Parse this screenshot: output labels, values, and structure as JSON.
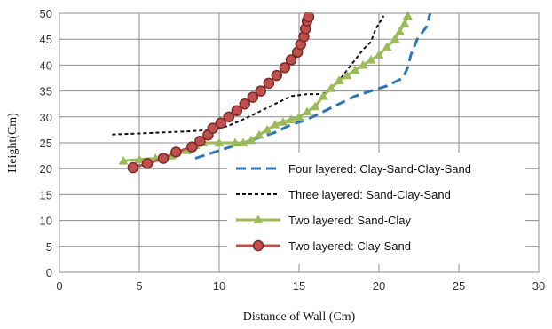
{
  "chart_data": {
    "type": "line",
    "title": "",
    "xlabel": "Distance of Wall (Cm)",
    "ylabel": "Height(Cm)",
    "xlim": [
      0,
      30
    ],
    "ylim": [
      0,
      50
    ],
    "xticks": [
      "0",
      "5",
      "10",
      "15",
      "20",
      "25",
      "30"
    ],
    "yticks": [
      "0",
      "5",
      "10",
      "15",
      "20",
      "25",
      "30",
      "35",
      "40",
      "45",
      "50"
    ],
    "grid": true,
    "legend_position": "bottom-right",
    "series": [
      {
        "name": "Four layered: Clay-Sand-Clay-Sand",
        "color": "#2e75b6",
        "style": "dashed",
        "marker": "none",
        "points": [
          [
            8.5,
            22
          ],
          [
            9.5,
            23
          ],
          [
            10.5,
            24
          ],
          [
            11.5,
            25
          ],
          [
            12.5,
            26
          ],
          [
            13.5,
            27
          ],
          [
            14.5,
            28.5
          ],
          [
            15.5,
            29.5
          ],
          [
            16.5,
            31
          ],
          [
            17.5,
            32.5
          ],
          [
            18.5,
            34
          ],
          [
            19.5,
            35
          ],
          [
            20.5,
            36
          ],
          [
            21.5,
            37.5
          ],
          [
            21.8,
            39.5
          ],
          [
            22,
            42
          ],
          [
            22.4,
            45
          ],
          [
            23,
            47.5
          ],
          [
            23.2,
            50
          ]
        ]
      },
      {
        "name": "Three layered: Sand-Clay-Sand",
        "color": "#111111",
        "style": "dotted",
        "marker": "none",
        "points": [
          [
            3.3,
            26.6
          ],
          [
            5,
            26.8
          ],
          [
            6.5,
            27
          ],
          [
            8,
            27.2
          ],
          [
            9.5,
            27.5
          ],
          [
            10.5,
            28.2
          ],
          [
            11.5,
            29.5
          ],
          [
            12.5,
            31
          ],
          [
            13.5,
            32.5
          ],
          [
            14.5,
            34
          ],
          [
            15.5,
            34.4
          ],
          [
            16.5,
            34.4
          ],
          [
            17.5,
            37
          ],
          [
            18.5,
            41
          ],
          [
            19,
            43
          ],
          [
            19.5,
            44.5
          ],
          [
            19.8,
            47
          ],
          [
            20.3,
            49.5
          ]
        ]
      },
      {
        "name": "Two layered: Sand-Clay",
        "color": "#9bbb59",
        "style": "solid",
        "marker": "triangle",
        "points": [
          [
            4,
            21.5
          ],
          [
            5,
            21.8
          ],
          [
            6,
            22
          ],
          [
            7,
            22.5
          ],
          [
            8,
            23.5
          ],
          [
            8.5,
            24.5
          ],
          [
            9,
            25
          ],
          [
            10,
            25
          ],
          [
            11,
            25
          ],
          [
            11.5,
            25
          ],
          [
            12,
            25.5
          ],
          [
            12.5,
            26.5
          ],
          [
            13,
            27.5
          ],
          [
            13.5,
            28.5
          ],
          [
            14,
            29
          ],
          [
            14.5,
            29.5
          ],
          [
            15,
            30
          ],
          [
            15.5,
            31
          ],
          [
            16,
            32
          ],
          [
            16.5,
            34
          ],
          [
            17,
            35.5
          ],
          [
            17.5,
            37
          ],
          [
            18,
            38
          ],
          [
            18.5,
            39
          ],
          [
            19,
            40
          ],
          [
            19.5,
            41
          ],
          [
            20,
            42
          ],
          [
            20.5,
            43.5
          ],
          [
            21,
            45
          ],
          [
            21.3,
            46.5
          ],
          [
            21.6,
            48
          ],
          [
            21.8,
            49.5
          ]
        ]
      },
      {
        "name": "Two layered: Clay-Sand",
        "color": "#c0504d",
        "style": "solid",
        "marker": "circle",
        "points": [
          [
            4.6,
            20.2
          ],
          [
            5.5,
            21
          ],
          [
            6.5,
            22
          ],
          [
            7.3,
            23.2
          ],
          [
            8.3,
            24.2
          ],
          [
            8.8,
            25.3
          ],
          [
            9.3,
            26.5
          ],
          [
            9.6,
            27.8
          ],
          [
            10.1,
            28.8
          ],
          [
            10.6,
            30
          ],
          [
            11.1,
            31.2
          ],
          [
            11.6,
            32.5
          ],
          [
            12.1,
            33.8
          ],
          [
            12.6,
            35
          ],
          [
            13.1,
            36.5
          ],
          [
            13.6,
            38
          ],
          [
            14.1,
            39.5
          ],
          [
            14.5,
            41
          ],
          [
            14.9,
            42.5
          ],
          [
            15.1,
            44
          ],
          [
            15.3,
            45.5
          ],
          [
            15.4,
            47
          ],
          [
            15.5,
            48.5
          ],
          [
            15.6,
            49.3
          ]
        ]
      }
    ]
  }
}
